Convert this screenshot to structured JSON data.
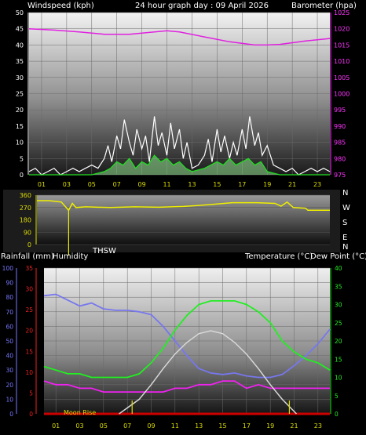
{
  "chart_data": [
    {
      "type": "line",
      "panel": "wind_barometer",
      "title": "24 hour graph day : 09 April 2026",
      "ylabel_left": "Windspeed (kph)",
      "ylabel_right": "Barometer (hpa)",
      "x_ticks": [
        "01",
        "03",
        "05",
        "07",
        "09",
        "11",
        "13",
        "15",
        "17",
        "19",
        "21",
        "23"
      ],
      "xlim": [
        0,
        24
      ],
      "ylim_left": [
        0,
        50
      ],
      "ylim_right": [
        975,
        1025
      ],
      "left_ticks": [
        0,
        5,
        10,
        15,
        20,
        25,
        30,
        35,
        40,
        45,
        50
      ],
      "right_ticks": [
        975,
        980,
        985,
        990,
        995,
        1000,
        1005,
        1010,
        1015,
        1020,
        1025
      ],
      "grid": true,
      "series": [
        {
          "key": "barometer",
          "axis": "right",
          "color": "#e020e0",
          "x": [
            0,
            2,
            4,
            6,
            8,
            10,
            11,
            12,
            14,
            16,
            18,
            19,
            20,
            22,
            24
          ],
          "y": [
            1020,
            1019.6,
            1019,
            1018.3,
            1018.3,
            1019,
            1019.4,
            1019,
            1017.5,
            1016,
            1015,
            1015,
            1015.2,
            1016.2,
            1017
          ]
        },
        {
          "key": "gust",
          "axis": "left",
          "color": "#ffffff",
          "x": [
            0,
            0.5,
            1,
            1.5,
            2,
            2.5,
            3,
            3.5,
            4,
            4.5,
            5,
            5.5,
            6,
            6.3,
            6.6,
            7,
            7.3,
            7.6,
            8,
            8.3,
            8.6,
            9,
            9.3,
            9.6,
            10,
            10.3,
            10.6,
            11,
            11.3,
            11.6,
            12,
            12.3,
            12.6,
            13,
            13.5,
            14,
            14.3,
            14.6,
            15,
            15.3,
            15.6,
            16,
            16.3,
            16.6,
            17,
            17.3,
            17.6,
            18,
            18.3,
            18.6,
            19,
            19.5,
            20,
            20.5,
            21,
            21.5,
            22,
            22.5,
            23,
            23.5,
            24
          ],
          "y": [
            1,
            2,
            0,
            1,
            2,
            0,
            1,
            2,
            1,
            2,
            3,
            2,
            5,
            9,
            4,
            12,
            8,
            17,
            10,
            6,
            14,
            8,
            12,
            4,
            18,
            9,
            13,
            6,
            16,
            8,
            14,
            5,
            10,
            2,
            3,
            6,
            11,
            4,
            14,
            7,
            12,
            5,
            10,
            6,
            14,
            8,
            18,
            9,
            13,
            6,
            9,
            3,
            2,
            1,
            2,
            0,
            1,
            2,
            1,
            2,
            1
          ]
        },
        {
          "key": "wind",
          "axis": "left",
          "color": "#22dd22",
          "x": [
            0,
            2,
            4,
            5,
            6,
            6.5,
            7,
            7.5,
            8,
            8.5,
            9,
            9.5,
            10,
            10.5,
            11,
            11.5,
            12,
            12.5,
            13,
            14,
            14.5,
            15,
            15.5,
            16,
            16.5,
            17,
            17.5,
            18,
            18.5,
            19,
            20,
            22,
            24
          ],
          "y": [
            0,
            0,
            0,
            0,
            1,
            2,
            4,
            3,
            5,
            2,
            4,
            3,
            6,
            4,
            5,
            3,
            4,
            2,
            1,
            2,
            3,
            4,
            3,
            5,
            3,
            4,
            5,
            3,
            4,
            1,
            0,
            0,
            0
          ]
        }
      ]
    },
    {
      "type": "line",
      "panel": "wind_direction",
      "ylabel_left": "",
      "ylabel_right": [
        "N",
        "W",
        "S",
        "E",
        "N"
      ],
      "left_ticks": [
        0,
        90,
        180,
        270,
        360
      ],
      "ylim": [
        0,
        360
      ],
      "series": [
        {
          "key": "direction",
          "color": "#eeee00",
          "x": [
            0,
            1,
            2,
            2.6,
            2.9,
            3.2,
            4,
            6,
            8,
            10,
            12,
            14,
            16,
            18,
            19.5,
            20,
            20.5,
            21,
            22,
            22.2,
            24
          ],
          "y": [
            320,
            320,
            310,
            250,
            300,
            270,
            275,
            270,
            275,
            272,
            278,
            290,
            305,
            305,
            300,
            280,
            310,
            270,
            265,
            250,
            250
          ]
        }
      ]
    },
    {
      "type": "line",
      "panel": "temperature_rain",
      "label_left": "Rainfall (mm)",
      "label_left2": "Humidity",
      "label_right": "Temperature (°C)",
      "label_right2": "Dew Point (°C)",
      "thsw_label": "THSW",
      "moon_label": "Moon Rise",
      "x_ticks": [
        "01",
        "03",
        "05",
        "07",
        "09",
        "11",
        "13",
        "15",
        "17",
        "19",
        "21",
        "23"
      ],
      "humidity_ticks": [
        0,
        10,
        20,
        30,
        40,
        50,
        60,
        70,
        80,
        90,
        100
      ],
      "rain_ticks": [
        0,
        5,
        10,
        15,
        20,
        25,
        30,
        35
      ],
      "temp_ticks": [
        0,
        5,
        10,
        15,
        20,
        25,
        30,
        35,
        40
      ],
      "grid": true,
      "series": [
        {
          "key": "humidity",
          "axis": "humidity",
          "ylim": [
            0,
            100
          ],
          "color": "#7777ee",
          "x": [
            0,
            1,
            2,
            3,
            4,
            5,
            6,
            7,
            8,
            9,
            10,
            11,
            12,
            13,
            14,
            15,
            16,
            17,
            18,
            19,
            20,
            21,
            22,
            23,
            24
          ],
          "y": [
            81,
            82,
            78,
            74,
            76,
            72,
            71,
            71,
            70,
            68,
            60,
            50,
            40,
            31,
            28,
            27,
            28,
            26,
            25,
            25,
            27,
            33,
            40,
            48,
            58
          ]
        },
        {
          "key": "temperature",
          "axis": "temp",
          "ylim": [
            0,
            40
          ],
          "color": "#22ee22",
          "x": [
            0,
            1,
            2,
            3,
            4,
            5,
            6,
            7,
            8,
            9,
            10,
            11,
            12,
            13,
            14,
            15,
            16,
            17,
            18,
            19,
            20,
            21,
            22,
            23,
            24
          ],
          "y": [
            13,
            12,
            11,
            11,
            10,
            10,
            10,
            10,
            11,
            14,
            18,
            23,
            27,
            30,
            31,
            31,
            31,
            30,
            28,
            25,
            20,
            17,
            15,
            14,
            12
          ]
        },
        {
          "key": "dewpoint",
          "axis": "temp",
          "ylim": [
            0,
            40
          ],
          "color": "#ee22ee",
          "x": [
            0,
            1,
            2,
            3,
            4,
            5,
            6,
            7,
            8,
            9,
            10,
            11,
            12,
            13,
            14,
            15,
            16,
            17,
            18,
            19,
            20,
            21,
            22,
            23,
            24
          ],
          "y": [
            9,
            8,
            8,
            7,
            7,
            6,
            6,
            6,
            6,
            6,
            6,
            7,
            7,
            8,
            8,
            9,
            9,
            7,
            8,
            7,
            7,
            7,
            7,
            7,
            7
          ]
        },
        {
          "key": "rainfall",
          "axis": "rain",
          "ylim": [
            0,
            35
          ],
          "color": "#cc0000",
          "x": [
            0,
            24
          ],
          "y": [
            0,
            0
          ]
        },
        {
          "key": "solar",
          "axis": "humidity",
          "ylim": [
            0,
            100
          ],
          "color": "#d8d8d8",
          "x": [
            6.3,
            8,
            9,
            10,
            11,
            12,
            13,
            14,
            15,
            16,
            17,
            18,
            19,
            20,
            21.2
          ],
          "y": [
            0,
            10,
            20,
            31,
            41,
            49,
            55,
            57,
            55,
            49,
            41,
            31,
            20,
            10,
            0
          ]
        }
      ]
    }
  ]
}
